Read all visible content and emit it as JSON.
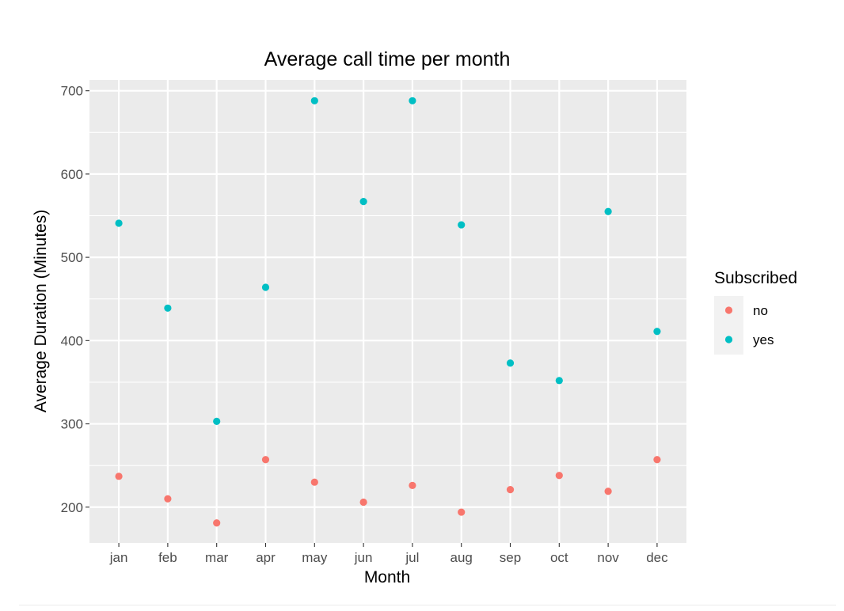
{
  "chart_data": {
    "type": "scatter",
    "title": "Average call time per month",
    "xlabel": "Month",
    "ylabel": "Average Duration (Minutes)",
    "categories": [
      "jan",
      "feb",
      "mar",
      "apr",
      "may",
      "jun",
      "jul",
      "aug",
      "sep",
      "oct",
      "nov",
      "dec"
    ],
    "ylim": [
      157,
      713
    ],
    "yticks": [
      200,
      300,
      400,
      500,
      600,
      700
    ],
    "grid": true,
    "legend": {
      "title": "Subscribed",
      "position": "right"
    },
    "series": [
      {
        "name": "no",
        "color": "#F8766D",
        "values": [
          237,
          210,
          181,
          257,
          230,
          206,
          226,
          194,
          221,
          238,
          219,
          257
        ]
      },
      {
        "name": "yes",
        "color": "#00BFC4",
        "values": [
          541,
          439,
          303,
          464,
          688,
          567,
          688,
          539,
          373,
          352,
          555,
          411
        ]
      }
    ]
  }
}
